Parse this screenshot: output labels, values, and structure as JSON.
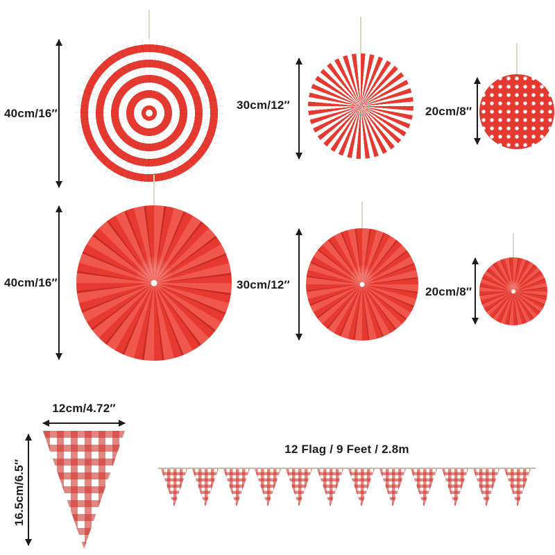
{
  "colors": {
    "red": "#e6392f",
    "redlight": "#f0584d",
    "reddark": "#c62b21",
    "ginghamred": "rgba(207,53,47,0.60)",
    "text": "#1b1b1b",
    "string": "#ddd6c4",
    "line": "#c4baa6"
  },
  "fans": {
    "row1": [
      {
        "id": "fan-striped",
        "label": "40cm/16″",
        "pattern": "concentric-red-white-stripes"
      },
      {
        "id": "fan-pinwheel",
        "label": "30cm/12″",
        "pattern": "radial-red-white-stripes"
      },
      {
        "id": "fan-polkadot",
        "label": "20cm/8″",
        "pattern": "red-with-white-polka-dots"
      }
    ],
    "row2": [
      {
        "id": "fan-solid-large",
        "label": "40cm/16″",
        "pattern": "solid-red-pleated"
      },
      {
        "id": "fan-solid-medium",
        "label": "30cm/12″",
        "pattern": "solid-red-pleated"
      },
      {
        "id": "fan-solid-small",
        "label": "20cm/8″",
        "pattern": "solid-red-pleated"
      }
    ]
  },
  "pennant": {
    "width_label": "12cm/4.72″",
    "height_label": "16.5cm/6.5″"
  },
  "banner": {
    "label": "12 Flag / 9 Feet  / 2.8m",
    "flag_count": 12
  }
}
